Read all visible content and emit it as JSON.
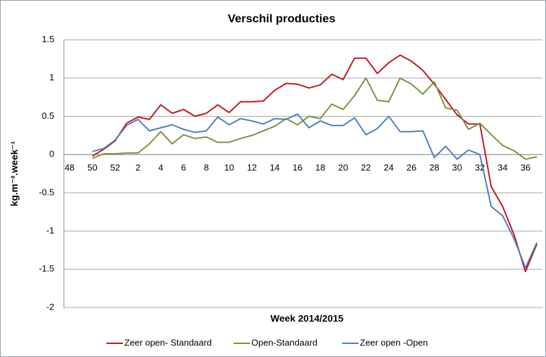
{
  "chart_data": {
    "type": "line",
    "title": "Verschil producties",
    "x_label": "Week 2014/2015",
    "y_label": "kg.m⁻².week⁻¹",
    "categories": [
      "48",
      null,
      "50",
      null,
      "52",
      null,
      "2",
      null,
      "4",
      null,
      "6",
      null,
      "8",
      null,
      "10",
      null,
      "12",
      null,
      "14",
      null,
      "16",
      null,
      "18",
      null,
      "20",
      null,
      "22",
      null,
      "24",
      null,
      "26",
      null,
      "28",
      null,
      "30",
      null,
      "32",
      null,
      "34",
      null,
      "36",
      null
    ],
    "ylim": [
      -2,
      1.5
    ],
    "yticks": [
      -2,
      -1.5,
      -1,
      -0.5,
      0,
      0.5,
      1,
      1.5
    ],
    "grid": true,
    "legend": "bottom",
    "series": [
      {
        "name": "Zeer open- Standaard",
        "color": "#c0161d",
        "values": [
          null,
          null,
          -0.02,
          0.07,
          0.18,
          0.41,
          0.49,
          0.46,
          0.65,
          0.54,
          0.59,
          0.5,
          0.54,
          0.65,
          0.55,
          0.69,
          0.69,
          0.7,
          0.84,
          0.93,
          0.92,
          0.87,
          0.91,
          1.05,
          0.98,
          1.26,
          1.26,
          1.06,
          1.2,
          1.3,
          1.22,
          1.1,
          0.92,
          0.72,
          0.52,
          0.4,
          0.4,
          -0.42,
          -0.68,
          -1.05,
          -1.53,
          -1.17
        ]
      },
      {
        "name": "Open-Standaard",
        "color": "#77933c",
        "values": [
          null,
          null,
          -0.05,
          0.01,
          0.01,
          0.02,
          0.02,
          0.14,
          0.3,
          0.14,
          0.26,
          0.21,
          0.23,
          0.16,
          0.16,
          0.21,
          0.25,
          0.31,
          0.37,
          0.47,
          0.39,
          0.5,
          0.47,
          0.66,
          0.59,
          0.77,
          1.0,
          0.71,
          0.69,
          1.0,
          0.92,
          0.79,
          0.95,
          0.61,
          0.58,
          0.33,
          0.41,
          0.26,
          0.12,
          0.05,
          -0.06,
          -0.03
        ]
      },
      {
        "name": "Zeer open -Open",
        "color": "#4a7ebb",
        "values": [
          null,
          null,
          0.04,
          0.08,
          0.19,
          0.38,
          0.46,
          0.31,
          0.35,
          0.39,
          0.33,
          0.29,
          0.31,
          0.49,
          0.39,
          0.47,
          0.44,
          0.4,
          0.47,
          0.46,
          0.53,
          0.35,
          0.44,
          0.38,
          0.38,
          0.48,
          0.26,
          0.34,
          0.5,
          0.3,
          0.3,
          0.31,
          -0.04,
          0.11,
          -0.06,
          0.06,
          0.0,
          -0.68,
          -0.8,
          -1.1,
          -1.48,
          -1.15
        ]
      }
    ]
  }
}
